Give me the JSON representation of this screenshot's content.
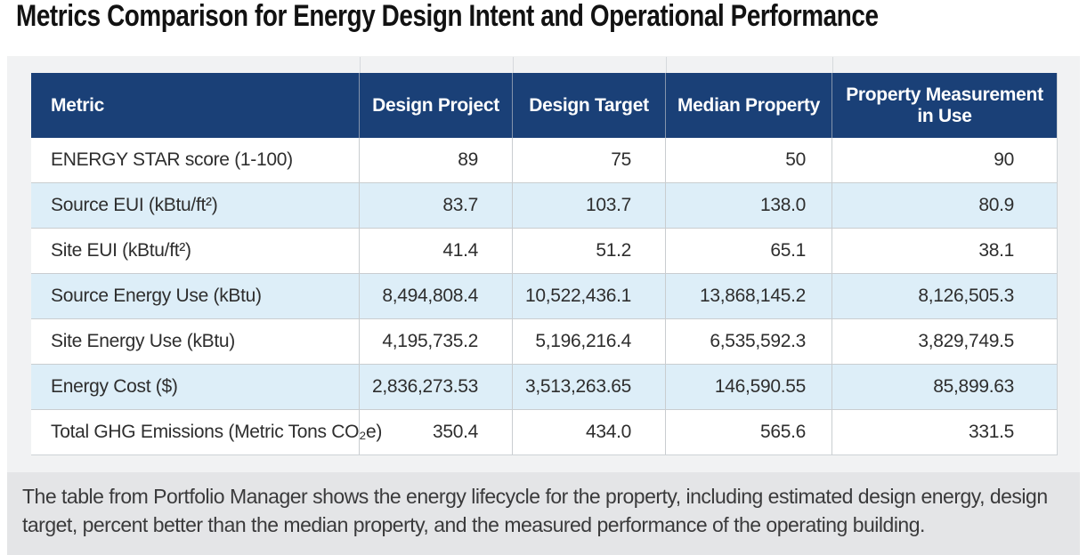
{
  "title": "Metrics Comparison for Energy Design Intent and Operational Performance",
  "table": {
    "columns": [
      "Metric",
      "Design Project",
      "Design Target",
      "Median Property",
      "Property Measurement in Use"
    ],
    "rows": [
      [
        "ENERGY STAR score (1-100)",
        "89",
        "75",
        "50",
        "90"
      ],
      [
        "Source EUI (kBtu/ft²)",
        "83.7",
        "103.7",
        "138.0",
        "80.9"
      ],
      [
        "Site EUI (kBtu/ft²)",
        "41.4",
        "51.2",
        "65.1",
        "38.1"
      ],
      [
        "Source Energy Use (kBtu)",
        "8,494,808.4",
        "10,522,436.1",
        "13,868,145.2",
        "8,126,505.3"
      ],
      [
        "Site Energy Use (kBtu)",
        "4,195,735.2",
        "5,196,216.4",
        "6,535,592.3",
        "3,829,749.5"
      ],
      [
        "Energy Cost ($)",
        "2,836,273.53",
        "3,513,263.65",
        "146,590.55",
        "85,899.63"
      ],
      [
        "Total GHG Emissions (Metric Tons CO₂e)",
        "350.4",
        "434.0",
        "565.6",
        "331.5"
      ]
    ]
  },
  "chart_data": {
    "type": "table",
    "title": "Metrics Comparison for Energy Design Intent and Operational Performance",
    "columns": [
      "Metric",
      "Design Project",
      "Design Target",
      "Median Property",
      "Property Measurement in Use"
    ],
    "rows": [
      {
        "metric": "ENERGY STAR score (1-100)",
        "design_project": 89,
        "design_target": 75,
        "median_property": 50,
        "property_measurement_in_use": 90
      },
      {
        "metric": "Source EUI (kBtu/ft²)",
        "design_project": 83.7,
        "design_target": 103.7,
        "median_property": 138.0,
        "property_measurement_in_use": 80.9
      },
      {
        "metric": "Site EUI (kBtu/ft²)",
        "design_project": 41.4,
        "design_target": 51.2,
        "median_property": 65.1,
        "property_measurement_in_use": 38.1
      },
      {
        "metric": "Source Energy Use (kBtu)",
        "design_project": 8494808.4,
        "design_target": 10522436.1,
        "median_property": 13868145.2,
        "property_measurement_in_use": 8126505.3
      },
      {
        "metric": "Site Energy Use (kBtu)",
        "design_project": 4195735.2,
        "design_target": 5196216.4,
        "median_property": 6535592.3,
        "property_measurement_in_use": 3829749.5
      },
      {
        "metric": "Energy Cost ($)",
        "design_project": 2836273.53,
        "design_target": 3513263.65,
        "median_property": 146590.55,
        "property_measurement_in_use": 85899.63
      },
      {
        "metric": "Total GHG Emissions (Metric Tons CO₂e)",
        "design_project": 350.4,
        "design_target": 434.0,
        "median_property": 565.6,
        "property_measurement_in_use": 331.5
      }
    ]
  },
  "caption": "The table from Portfolio Manager shows the energy lifecycle for the property, including estimated design energy, design target, percent better than the median property, and the measured performance of the operating building.",
  "colors": {
    "header_bg": "#1A4077",
    "header_text": "#FFFFFF",
    "row_alt_bg": "#DDEEF8",
    "panel_bg": "#F1F2F3",
    "caption_bg": "#E4E5E7",
    "body_text": "#2E2E2E"
  }
}
